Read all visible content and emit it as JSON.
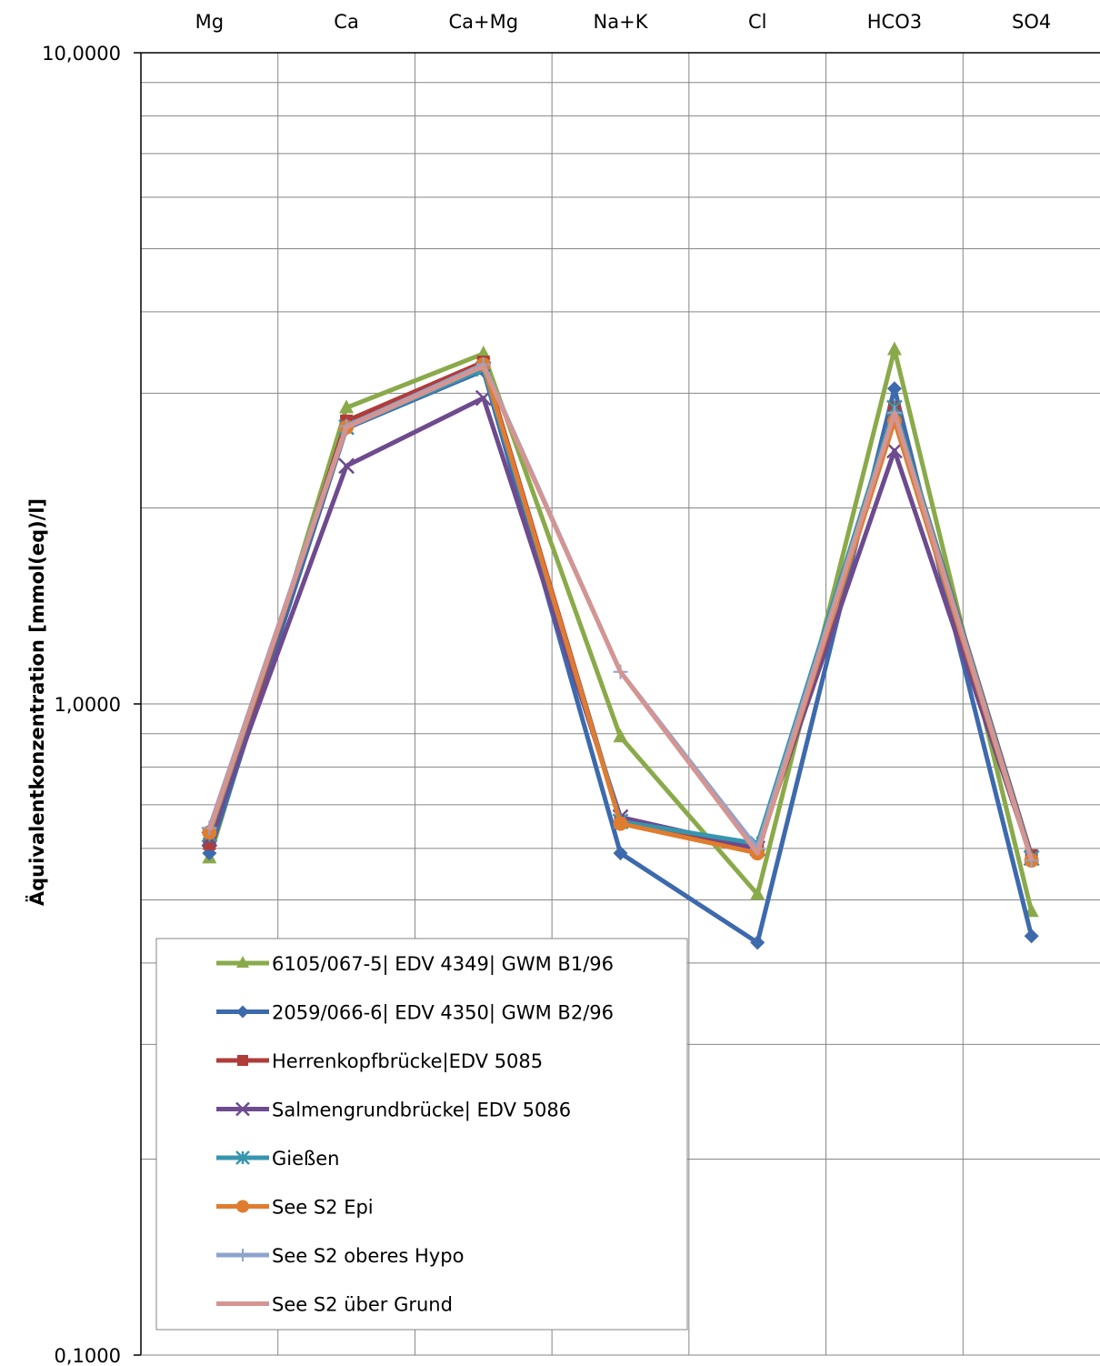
{
  "chart_data": {
    "type": "line",
    "title": "",
    "ylabel": "Äquivalentkonzentration [mmol(eq)/l]",
    "xlabel": "",
    "categories": [
      "Mg",
      "Ca",
      "Ca+Mg",
      "Na+K",
      "Cl",
      "HCO3",
      "SO4"
    ],
    "y_scale": "log",
    "ylim": [
      0.1,
      10
    ],
    "y_tick_labels": [
      "10,0000",
      "1,0000",
      "0,1000"
    ],
    "y_tick_values": [
      10,
      1,
      0.1
    ],
    "grid": true,
    "legend_position": "bottom-left",
    "series": [
      {
        "name": "6105/067-5| EDV 4349| GWM B1/96",
        "color": "#8aaa4a",
        "marker": "triangle",
        "values": [
          0.58,
          2.85,
          3.45,
          0.89,
          0.51,
          3.5,
          0.48
        ]
      },
      {
        "name": "2059/066-6| EDV 4350| GWM B2/96",
        "color": "#3d6aad",
        "marker": "diamond",
        "values": [
          0.59,
          2.65,
          3.25,
          0.59,
          0.43,
          3.05,
          0.44
        ]
      },
      {
        "name": "Herrenkopfbrücke|EDV 5085",
        "color": "#b03c3a",
        "marker": "square",
        "values": [
          0.61,
          2.72,
          3.35,
          0.66,
          0.6,
          2.85,
          0.585
        ]
      },
      {
        "name": "Salmengrundbrücke| EDV 5086",
        "color": "#6e4a8e",
        "marker": "x",
        "values": [
          0.62,
          2.32,
          2.95,
          0.67,
          0.6,
          2.45,
          0.58
        ]
      },
      {
        "name": "Gießen",
        "color": "#3795ad",
        "marker": "asterisk",
        "values": [
          0.63,
          2.66,
          3.27,
          0.66,
          0.61,
          2.85,
          0.58
        ]
      },
      {
        "name": "See S2 Epi",
        "color": "#e07c2f",
        "marker": "circle",
        "values": [
          0.635,
          2.66,
          3.32,
          0.655,
          0.59,
          2.72,
          0.575
        ]
      },
      {
        "name": "See S2 oberes Hypo",
        "color": "#8ea4cc",
        "marker": "plus",
        "values": [
          0.645,
          2.67,
          3.32,
          1.12,
          0.6,
          2.8,
          0.575
        ]
      },
      {
        "name": "See S2 über Grund",
        "color": "#d49592",
        "marker": "none",
        "values": [
          0.64,
          2.66,
          3.3,
          1.12,
          0.59,
          2.8,
          0.575
        ]
      }
    ]
  }
}
